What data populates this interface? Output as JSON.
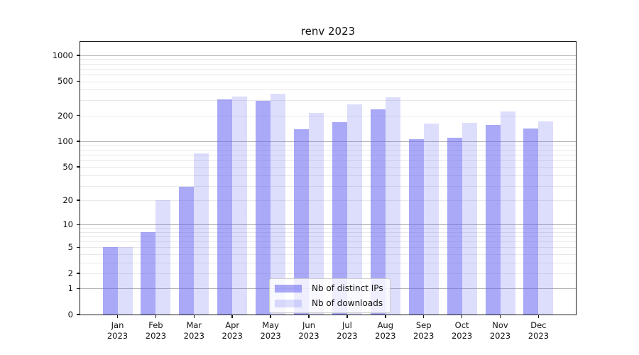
{
  "figure": {
    "title": "renv 2023"
  },
  "legend": {
    "items": [
      {
        "label": "Nb of distinct IPs",
        "series": "ips"
      },
      {
        "label": "Nb of downloads",
        "series": "downloads"
      }
    ]
  },
  "axes": {
    "yticks": [
      0,
      1,
      2,
      5,
      10,
      20,
      50,
      100,
      200,
      500,
      1000
    ],
    "major_gridlines": [
      1,
      10,
      100,
      1000
    ],
    "minor_gridlines": [
      2,
      3,
      4,
      5,
      6,
      7,
      8,
      9,
      20,
      30,
      40,
      50,
      60,
      70,
      80,
      90,
      200,
      300,
      400,
      500,
      600,
      700,
      800,
      900
    ],
    "ymax": 1430,
    "yscale": "log1p",
    "x_months": [
      "Jan",
      "Feb",
      "Mar",
      "Apr",
      "May",
      "Jun",
      "Jul",
      "Aug",
      "Sep",
      "Oct",
      "Nov",
      "Dec"
    ],
    "x_year": "2023"
  },
  "colors": {
    "bar_base_rgb": "99,99,240",
    "dark_alpha": 0.55,
    "light_alpha": 0.22,
    "major_grid": "#b3b3b3",
    "minor_grid": "#e8e8e8",
    "spine": "#1a1a1a"
  },
  "chart_data": {
    "type": "bar",
    "title": "renv 2023",
    "categories": [
      "Jan 2023",
      "Feb 2023",
      "Mar 2023",
      "Apr 2023",
      "May 2023",
      "Jun 2023",
      "Jul 2023",
      "Aug 2023",
      "Sep 2023",
      "Oct 2023",
      "Nov 2023",
      "Dec 2023"
    ],
    "series": [
      {
        "name": "Nb of distinct IPs",
        "values": [
          5,
          8,
          29,
          310,
          295,
          140,
          168,
          237,
          106,
          111,
          157,
          141
        ]
      },
      {
        "name": "Nb of downloads",
        "values": [
          5,
          20,
          73,
          330,
          357,
          213,
          270,
          325,
          163,
          165,
          222,
          170
        ]
      }
    ],
    "yscale": "log1p",
    "yticks": [
      0,
      1,
      2,
      5,
      10,
      20,
      50,
      100,
      200,
      500,
      1000
    ],
    "ylim": [
      0,
      1430
    ],
    "grid": true,
    "legend_position": "lower center"
  }
}
